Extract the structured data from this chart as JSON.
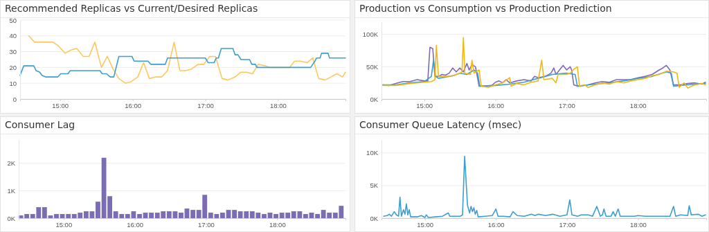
{
  "chart_data": [
    {
      "type": "line",
      "title": "Recommended Replicas vs Current/Desired Replicas",
      "xlim": [
        14.45,
        18.93
      ],
      "xticks": [
        {
          "value": 15,
          "label": "15:00"
        },
        {
          "value": 16,
          "label": "16:00"
        },
        {
          "value": 17,
          "label": "17:00"
        },
        {
          "value": 18,
          "label": "18:00"
        }
      ],
      "ylim": [
        0,
        50
      ],
      "yticks": [
        0,
        10,
        20,
        30,
        40,
        50
      ],
      "grid": "y",
      "series": [
        {
          "color": "#fdc75e",
          "x": [
            14.57,
            14.65,
            14.9,
            14.97,
            15.07,
            15.15,
            15.23,
            15.32,
            15.4,
            15.48,
            15.57,
            15.65,
            15.73,
            15.81,
            15.9,
            15.98,
            16.07,
            16.15,
            16.23,
            16.32,
            16.4,
            16.48,
            16.57,
            16.65,
            16.73,
            16.81,
            16.9,
            16.98,
            17.06,
            17.14,
            17.23,
            17.31,
            17.41,
            17.49,
            17.57,
            17.65,
            17.73,
            17.82,
            17.9,
            18.16,
            18.23,
            18.31,
            18.4,
            18.48,
            18.56,
            18.65,
            18.73,
            18.81,
            18.89,
            18.93
          ],
          "values": [
            40,
            36,
            36,
            34,
            29,
            31,
            32,
            27,
            27,
            36,
            20,
            27,
            19,
            13,
            10,
            11,
            14,
            23,
            13,
            14,
            14,
            18,
            36,
            18,
            18,
            19,
            22,
            22,
            27,
            27,
            13,
            12,
            14,
            17,
            17,
            16,
            22,
            21,
            20,
            20,
            24,
            24,
            23,
            26,
            13,
            12,
            14,
            16,
            14,
            17
          ]
        },
        {
          "color": "#3a9fd0",
          "x": [
            14.45,
            14.5,
            14.64,
            14.67,
            14.72,
            14.75,
            14.8,
            14.97,
            15.01,
            15.11,
            15.14,
            15.55,
            15.58,
            15.64,
            15.69,
            15.74,
            15.81,
            15.99,
            16.02,
            16.21,
            16.25,
            16.45,
            16.48,
            17.0,
            17.04,
            17.12,
            17.15,
            17.18,
            17.22,
            17.38,
            17.41,
            17.45,
            17.49,
            17.61,
            17.64,
            17.69,
            17.71,
            18.45,
            18.51,
            18.53,
            18.58,
            18.6,
            18.69,
            18.71,
            18.93
          ],
          "values": [
            15,
            21,
            21,
            18,
            17,
            15,
            14,
            14,
            16,
            16,
            18,
            18,
            16,
            16,
            14,
            14,
            27,
            27,
            24,
            24,
            22,
            22,
            26,
            26,
            23,
            23,
            26,
            26,
            32,
            32,
            28,
            28,
            25,
            25,
            22,
            22,
            20,
            20,
            24,
            26,
            26,
            29,
            29,
            26,
            26
          ]
        }
      ]
    },
    {
      "type": "line",
      "title": "Production vs Consumption vs Production Prediction",
      "xlim": [
        14.4,
        18.96
      ],
      "xticks": [
        {
          "value": 15,
          "label": "15:00"
        },
        {
          "value": 16,
          "label": "16:00"
        },
        {
          "value": 17,
          "label": "17:00"
        },
        {
          "value": 18,
          "label": "18:00"
        }
      ],
      "ylim": [
        0,
        120000
      ],
      "yticks": [
        {
          "value": 0,
          "label": "0K"
        },
        {
          "value": 50000,
          "label": "50K"
        },
        {
          "value": 100000,
          "label": "100K"
        }
      ],
      "grid": "y",
      "series": [
        {
          "color": "#8068b6",
          "x": [
            14.42,
            14.5,
            14.6,
            14.7,
            14.8,
            14.9,
            15.0,
            15.05,
            15.08,
            15.12,
            15.15,
            15.2,
            15.25,
            15.3,
            15.35,
            15.4,
            15.45,
            15.5,
            15.55,
            15.6,
            15.63,
            15.67,
            15.72,
            15.77,
            15.85,
            15.95,
            16.0,
            16.05,
            16.1,
            16.15,
            16.2,
            16.3,
            16.4,
            16.5,
            16.55,
            16.6,
            16.7,
            16.78,
            16.82,
            16.85,
            16.9,
            16.95,
            17.0,
            17.05,
            17.07,
            17.1,
            17.15,
            17.2,
            17.3,
            17.4,
            17.5,
            17.6,
            17.7,
            17.8,
            17.9,
            18.0,
            18.1,
            18.2,
            18.3,
            18.35,
            18.4,
            18.45,
            18.5,
            18.6,
            18.7,
            18.8,
            18.9,
            18.95
          ],
          "values": [
            22000,
            21000,
            24000,
            27000,
            27000,
            30000,
            28000,
            28000,
            80000,
            78000,
            35000,
            35000,
            38000,
            37000,
            40000,
            48000,
            42000,
            48000,
            42000,
            55000,
            45000,
            53000,
            50000,
            20000,
            20000,
            21000,
            26000,
            28000,
            25000,
            30000,
            25000,
            28000,
            30000,
            28000,
            35000,
            33000,
            35000,
            40000,
            48000,
            38000,
            45000,
            52000,
            45000,
            50000,
            45000,
            22000,
            20000,
            20000,
            22000,
            25000,
            27000,
            26000,
            30000,
            30000,
            30000,
            33000,
            35000,
            38000,
            45000,
            48000,
            52000,
            45000,
            22000,
            22000,
            24000,
            25000,
            23000,
            26000
          ]
        },
        {
          "color": "#3a9fd0",
          "x": [
            14.42,
            14.6,
            14.8,
            15.0,
            15.1,
            15.13,
            15.16,
            15.2,
            15.3,
            15.4,
            15.5,
            15.6,
            15.7,
            15.75,
            15.78,
            16.0,
            16.2,
            16.4,
            16.6,
            16.8,
            17.0,
            17.12,
            17.15,
            17.4,
            17.6,
            17.8,
            18.0,
            18.2,
            18.4,
            18.47,
            18.5,
            18.7,
            18.95
          ],
          "values": [
            22000,
            22000,
            25000,
            27000,
            35000,
            60000,
            35000,
            32000,
            34000,
            36000,
            40000,
            38000,
            45000,
            40000,
            20000,
            21000,
            23000,
            26000,
            32000,
            38000,
            40000,
            38000,
            20000,
            23000,
            25000,
            28000,
            32000,
            35000,
            42000,
            40000,
            20000,
            22000,
            24000
          ]
        },
        {
          "color": "#f2b80f",
          "x": [
            14.42,
            14.6,
            14.8,
            15.0,
            15.1,
            15.15,
            15.17,
            15.2,
            15.3,
            15.4,
            15.5,
            15.53,
            15.55,
            15.57,
            15.65,
            15.67,
            15.7,
            15.77,
            15.8,
            15.9,
            16.0,
            16.1,
            16.2,
            16.22,
            16.3,
            16.4,
            16.5,
            16.6,
            16.65,
            16.68,
            16.8,
            16.85,
            16.88,
            17.0,
            17.05,
            17.1,
            17.15,
            17.18,
            17.25,
            17.3,
            17.4,
            17.5,
            17.6,
            17.7,
            17.8,
            17.9,
            18.0,
            18.1,
            18.2,
            18.3,
            18.4,
            18.5,
            18.55,
            18.58,
            18.65,
            18.7,
            18.8,
            18.9,
            18.95
          ],
          "values": [
            21000,
            21000,
            24000,
            26000,
            27000,
            30000,
            83000,
            35000,
            35000,
            36000,
            40000,
            42000,
            95000,
            40000,
            38000,
            60000,
            40000,
            45000,
            20000,
            18000,
            22000,
            25000,
            33000,
            20000,
            24000,
            22000,
            26000,
            28000,
            60000,
            30000,
            32000,
            25000,
            38000,
            38000,
            40000,
            46000,
            50000,
            20000,
            22000,
            18000,
            22000,
            25000,
            23000,
            27000,
            25000,
            28000,
            30000,
            32000,
            36000,
            38000,
            43000,
            42000,
            40000,
            18000,
            25000,
            17000,
            22000,
            24000,
            22000
          ]
        }
      ]
    },
    {
      "type": "bar",
      "title": "Consumer Lag",
      "color": "#7b6cb5",
      "xlim": [
        14.37,
        18.96
      ],
      "xticks": [
        {
          "value": 15,
          "label": "15:00"
        },
        {
          "value": 16,
          "label": "16:00"
        },
        {
          "value": 17,
          "label": "17:00"
        },
        {
          "value": 18,
          "label": "18:00"
        }
      ],
      "ylim": [
        0,
        2850
      ],
      "yticks": [
        {
          "value": 0,
          "label": "0K"
        },
        {
          "value": 1000,
          "label": "1K"
        },
        {
          "value": 2000,
          "label": "2K"
        }
      ],
      "grid": "y",
      "x": [
        14.4,
        14.483,
        14.567,
        14.65,
        14.733,
        14.817,
        14.9,
        14.983,
        15.067,
        15.15,
        15.233,
        15.317,
        15.4,
        15.483,
        15.567,
        15.65,
        15.733,
        15.817,
        15.9,
        15.983,
        16.067,
        16.15,
        16.233,
        16.317,
        16.4,
        16.483,
        16.567,
        16.65,
        16.733,
        16.817,
        16.9,
        16.983,
        17.067,
        17.15,
        17.233,
        17.317,
        17.4,
        17.483,
        17.567,
        17.65,
        17.733,
        17.817,
        17.9,
        17.983,
        18.067,
        18.15,
        18.233,
        18.317,
        18.4,
        18.483,
        18.567,
        18.65,
        18.733,
        18.817,
        18.9
      ],
      "values": [
        100,
        150,
        150,
        400,
        400,
        100,
        150,
        150,
        150,
        150,
        200,
        250,
        250,
        600,
        2200,
        800,
        250,
        150,
        150,
        250,
        150,
        200,
        200,
        200,
        250,
        250,
        250,
        200,
        350,
        300,
        300,
        850,
        200,
        150,
        200,
        300,
        300,
        250,
        250,
        250,
        200,
        150,
        200,
        150,
        200,
        200,
        250,
        250,
        150,
        200,
        150,
        300,
        200,
        200,
        450
      ]
    },
    {
      "type": "line",
      "title": "Consumer Queue Latency (msec)",
      "xlim": [
        14.39,
        18.96
      ],
      "xticks": [
        {
          "value": 15,
          "label": "15:00"
        },
        {
          "value": 16,
          "label": "16:00"
        },
        {
          "value": 17,
          "label": "17:00"
        },
        {
          "value": 18,
          "label": "18:00"
        }
      ],
      "ylim": [
        0,
        12000
      ],
      "yticks": [
        {
          "value": 0,
          "label": "0K"
        },
        {
          "value": 5000,
          "label": "5K"
        },
        {
          "value": 10000,
          "label": "10K"
        }
      ],
      "grid": "y",
      "series": [
        {
          "color": "#3a9fd0",
          "x": [
            14.42,
            14.47,
            14.5,
            14.53,
            14.57,
            14.6,
            14.63,
            14.65,
            14.67,
            14.7,
            14.72,
            14.74,
            14.76,
            14.78,
            14.8,
            14.9,
            14.95,
            15.0,
            15.02,
            15.05,
            15.15,
            15.25,
            15.33,
            15.35,
            15.5,
            15.53,
            15.56,
            15.6,
            15.63,
            15.65,
            15.67,
            15.69,
            15.71,
            15.73,
            15.75,
            15.85,
            15.95,
            16.0,
            16.03,
            16.1,
            16.2,
            16.24,
            16.3,
            16.4,
            16.5,
            16.55,
            16.6,
            16.7,
            16.8,
            16.9,
            17.0,
            17.04,
            17.07,
            17.15,
            17.2,
            17.3,
            17.36,
            17.42,
            17.47,
            17.5,
            17.52,
            17.55,
            17.62,
            17.65,
            17.68,
            17.72,
            17.75,
            17.85,
            17.95,
            18.0,
            18.1,
            18.2,
            18.3,
            18.4,
            18.45,
            18.5,
            18.53,
            18.6,
            18.7,
            18.72,
            18.75,
            18.85,
            18.9,
            18.95
          ],
          "values": [
            300,
            400,
            600,
            300,
            1000,
            500,
            300,
            3200,
            300,
            1300,
            600,
            2200,
            500,
            1300,
            200,
            200,
            400,
            100,
            500,
            100,
            200,
            300,
            800,
            300,
            300,
            500,
            9500,
            2000,
            800,
            1800,
            1000,
            1600,
            600,
            1200,
            200,
            300,
            400,
            1400,
            300,
            300,
            200,
            1000,
            400,
            300,
            600,
            400,
            600,
            400,
            600,
            300,
            500,
            2800,
            500,
            300,
            500,
            500,
            300,
            1800,
            300,
            500,
            1400,
            300,
            300,
            1000,
            300,
            1400,
            300,
            300,
            300,
            400,
            300,
            300,
            300,
            300,
            300,
            1800,
            300,
            500,
            400,
            1900,
            500,
            600,
            300,
            500
          ]
        }
      ]
    }
  ]
}
